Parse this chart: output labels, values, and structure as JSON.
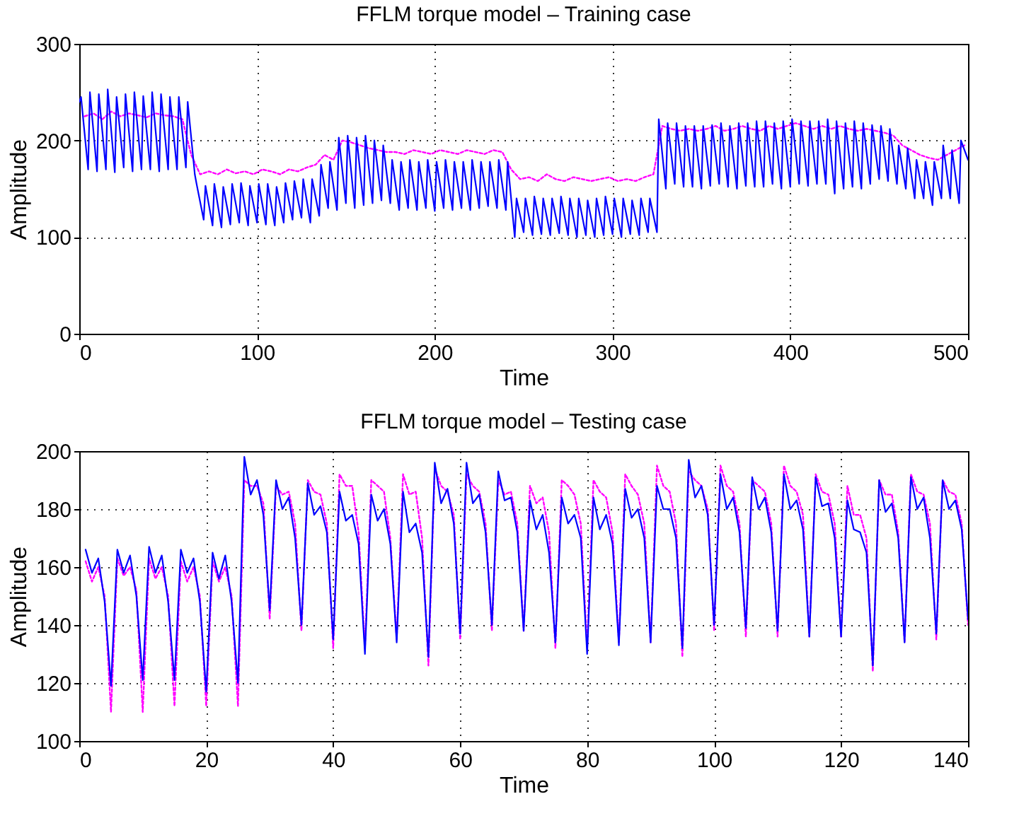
{
  "chart_data": [
    {
      "type": "line",
      "title": "FFLM torque model – Training case",
      "xlabel": "Time",
      "ylabel": "Amplitude",
      "xlim": [
        0,
        500
      ],
      "ylim": [
        0,
        300
      ],
      "xticks": [
        0,
        100,
        200,
        300,
        400,
        500
      ],
      "yticks": [
        0,
        100,
        200,
        300
      ],
      "grid": true,
      "series": [
        {
          "color": "#ff00ff",
          "line_style": "dotted",
          "x": [
            3,
            8,
            13,
            18,
            23,
            28,
            33,
            38,
            43,
            48,
            53,
            58,
            63,
            68,
            73,
            78,
            83,
            88,
            93,
            98,
            103,
            108,
            113,
            118,
            123,
            128,
            133,
            138,
            143,
            148,
            153,
            158,
            163,
            168,
            173,
            178,
            183,
            188,
            193,
            198,
            203,
            208,
            213,
            218,
            223,
            228,
            233,
            238,
            243,
            248,
            253,
            258,
            263,
            268,
            273,
            278,
            283,
            288,
            293,
            298,
            303,
            308,
            313,
            318,
            323,
            328,
            333,
            338,
            343,
            348,
            353,
            358,
            363,
            368,
            373,
            378,
            383,
            388,
            393,
            398,
            403,
            408,
            413,
            418,
            423,
            428,
            433,
            438,
            443,
            448,
            453,
            458,
            463,
            468,
            473,
            478,
            483,
            488,
            493,
            498
          ],
          "values": [
            225,
            228,
            222,
            230,
            225,
            228,
            226,
            224,
            228,
            226,
            225,
            222,
            185,
            165,
            168,
            165,
            170,
            166,
            168,
            165,
            170,
            168,
            165,
            170,
            168,
            172,
            175,
            185,
            180,
            200,
            198,
            195,
            192,
            190,
            188,
            188,
            186,
            190,
            188,
            186,
            190,
            188,
            186,
            190,
            188,
            186,
            190,
            188,
            170,
            160,
            162,
            158,
            165,
            160,
            158,
            162,
            160,
            158,
            160,
            162,
            158,
            160,
            158,
            162,
            165,
            215,
            212,
            210,
            212,
            210,
            212,
            215,
            210,
            212,
            215,
            212,
            210,
            215,
            212,
            215,
            218,
            215,
            212,
            215,
            212,
            215,
            212,
            210,
            212,
            210,
            208,
            205,
            195,
            190,
            185,
            182,
            180,
            185,
            190,
            195
          ]
        },
        {
          "color": "#0000ff",
          "line_style": "solid",
          "x": [
            0,
            1,
            5,
            6,
            10,
            11,
            15,
            16,
            20,
            21,
            25,
            26,
            30,
            31,
            35,
            36,
            40,
            41,
            45,
            46,
            50,
            51,
            55,
            56,
            60,
            61,
            65,
            66,
            70,
            71,
            75,
            76,
            80,
            81,
            85,
            86,
            90,
            91,
            95,
            96,
            100,
            101,
            105,
            106,
            110,
            111,
            115,
            116,
            120,
            121,
            125,
            126,
            130,
            131,
            135,
            136,
            140,
            141,
            145,
            146,
            150,
            151,
            155,
            156,
            160,
            161,
            165,
            166,
            170,
            171,
            175,
            176,
            180,
            181,
            185,
            186,
            190,
            191,
            195,
            196,
            200,
            201,
            205,
            206,
            210,
            211,
            215,
            216,
            220,
            221,
            225,
            226,
            230,
            231,
            235,
            236,
            240,
            241,
            245,
            246,
            250,
            251,
            255,
            256,
            260,
            261,
            265,
            266,
            270,
            271,
            275,
            276,
            280,
            281,
            285,
            286,
            290,
            291,
            295,
            296,
            300,
            301,
            305,
            306,
            310,
            311,
            315,
            316,
            320,
            321,
            325,
            326,
            330,
            331,
            335,
            336,
            340,
            341,
            345,
            346,
            350,
            351,
            355,
            356,
            360,
            361,
            365,
            366,
            370,
            371,
            375,
            376,
            380,
            381,
            385,
            386,
            390,
            391,
            395,
            396,
            400,
            401,
            405,
            406,
            410,
            411,
            415,
            416,
            420,
            421,
            425,
            426,
            430,
            431,
            435,
            436,
            440,
            441,
            445,
            446,
            450,
            451,
            455,
            456,
            460,
            461,
            465,
            466,
            470,
            471,
            475,
            476,
            480,
            481,
            485,
            486,
            490,
            491,
            495,
            496,
            500
          ],
          "values": [
            240,
            245,
            170,
            250,
            168,
            248,
            170,
            253,
            167,
            245,
            172,
            248,
            168,
            250,
            170,
            246,
            170,
            250,
            168,
            248,
            170,
            245,
            170,
            245,
            172,
            240,
            165,
            155,
            118,
            153,
            112,
            155,
            110,
            152,
            113,
            155,
            115,
            156,
            112,
            153,
            115,
            155,
            113,
            155,
            112,
            152,
            115,
            156,
            118,
            158,
            120,
            160,
            115,
            160,
            122,
            175,
            130,
            178,
            128,
            203,
            135,
            205,
            130,
            203,
            133,
            205,
            135,
            200,
            138,
            195,
            135,
            180,
            128,
            178,
            130,
            180,
            128,
            178,
            130,
            180,
            127,
            178,
            130,
            180,
            128,
            178,
            130,
            178,
            128,
            180,
            130,
            178,
            132,
            178,
            130,
            180,
            128,
            178,
            100,
            140,
            105,
            140,
            102,
            142,
            103,
            140,
            102,
            140,
            104,
            142,
            102,
            140,
            100,
            140,
            102,
            138,
            100,
            140,
            102,
            142,
            103,
            140,
            100,
            140,
            103,
            138,
            102,
            140,
            105,
            140,
            105,
            222,
            150,
            218,
            155,
            218,
            152,
            215,
            152,
            215,
            150,
            215,
            153,
            216,
            155,
            218,
            152,
            215,
            150,
            218,
            153,
            218,
            152,
            220,
            152,
            220,
            155,
            218,
            150,
            220,
            152,
            222,
            155,
            220,
            153,
            220,
            155,
            220,
            155,
            222,
            145,
            220,
            150,
            218,
            152,
            220,
            150,
            218,
            155,
            216,
            160,
            215,
            158,
            212,
            155,
            195,
            150,
            192,
            140,
            180,
            140,
            178,
            133,
            178,
            140,
            195,
            140,
            190,
            135,
            200,
            180
          ]
        }
      ]
    },
    {
      "type": "line",
      "title": "FFLM torque model – Testing case",
      "xlabel": "Time",
      "ylabel": "Amplitude",
      "xlim": [
        0,
        140
      ],
      "ylim": [
        100,
        200
      ],
      "xticks": [
        0,
        20,
        40,
        60,
        80,
        100,
        120,
        140
      ],
      "yticks": [
        100,
        120,
        140,
        160,
        180,
        200
      ],
      "grid": true,
      "series": [
        {
          "color": "#ff00ff",
          "line_style": "dotted",
          "x": [
            1,
            2,
            3,
            4,
            5,
            6,
            7,
            8,
            9,
            10,
            11,
            12,
            13,
            14,
            15,
            16,
            17,
            18,
            19,
            20,
            21,
            22,
            23,
            24,
            25,
            26,
            27,
            28,
            29,
            30,
            31,
            32,
            33,
            34,
            35,
            36,
            37,
            38,
            39,
            40,
            41,
            42,
            43,
            44,
            45,
            46,
            47,
            48,
            49,
            50,
            51,
            52,
            53,
            54,
            55,
            56,
            57,
            58,
            59,
            60,
            61,
            62,
            63,
            64,
            65,
            66,
            67,
            68,
            69,
            70,
            71,
            72,
            73,
            74,
            75,
            76,
            77,
            78,
            79,
            80,
            81,
            82,
            83,
            84,
            85,
            86,
            87,
            88,
            89,
            90,
            91,
            92,
            93,
            94,
            95,
            96,
            97,
            98,
            99,
            100,
            101,
            102,
            103,
            104,
            105,
            106,
            107,
            108,
            109,
            110,
            111,
            112,
            113,
            114,
            115,
            116,
            117,
            118,
            119,
            120,
            121,
            122,
            123,
            124,
            125,
            126,
            127,
            128,
            129,
            130,
            131,
            132,
            133,
            134,
            135,
            136,
            137,
            138,
            139,
            140
          ],
          "values": [
            162,
            155,
            160,
            150,
            110,
            163,
            157,
            160,
            152,
            110,
            163,
            156,
            160,
            150,
            112,
            162,
            155,
            160,
            150,
            112,
            162,
            155,
            160,
            150,
            112,
            190,
            188,
            188,
            182,
            142,
            188,
            185,
            186,
            175,
            138,
            190,
            186,
            185,
            175,
            132,
            192,
            188,
            188,
            172,
            132,
            190,
            188,
            186,
            170,
            135,
            192,
            185,
            186,
            170,
            126,
            194,
            188,
            186,
            178,
            135,
            192,
            188,
            186,
            175,
            138,
            190,
            185,
            186,
            175,
            138,
            188,
            182,
            184,
            172,
            132,
            190,
            188,
            185,
            175,
            132,
            190,
            186,
            184,
            172,
            134,
            192,
            188,
            185,
            175,
            134,
            195,
            188,
            186,
            175,
            129,
            193,
            190,
            188,
            180,
            138,
            195,
            188,
            186,
            175,
            136,
            190,
            188,
            186,
            175,
            136,
            195,
            188,
            186,
            178,
            136,
            192,
            186,
            185,
            175,
            136,
            188,
            178,
            178,
            170,
            124,
            190,
            185,
            185,
            172,
            134,
            192,
            186,
            185,
            175,
            135,
            190,
            186,
            185,
            175,
            140
          ]
        },
        {
          "color": "#0000ff",
          "line_style": "solid",
          "x": [
            1,
            2,
            3,
            4,
            5,
            6,
            7,
            8,
            9,
            10,
            11,
            12,
            13,
            14,
            15,
            16,
            17,
            18,
            19,
            20,
            21,
            22,
            23,
            24,
            25,
            26,
            27,
            28,
            29,
            30,
            31,
            32,
            33,
            34,
            35,
            36,
            37,
            38,
            39,
            40,
            41,
            42,
            43,
            44,
            45,
            46,
            47,
            48,
            49,
            50,
            51,
            52,
            53,
            54,
            55,
            56,
            57,
            58,
            59,
            60,
            61,
            62,
            63,
            64,
            65,
            66,
            67,
            68,
            69,
            70,
            71,
            72,
            73,
            74,
            75,
            76,
            77,
            78,
            79,
            80,
            81,
            82,
            83,
            84,
            85,
            86,
            87,
            88,
            89,
            90,
            91,
            92,
            93,
            94,
            95,
            96,
            97,
            98,
            99,
            100,
            101,
            102,
            103,
            104,
            105,
            106,
            107,
            108,
            109,
            110,
            111,
            112,
            113,
            114,
            115,
            116,
            117,
            118,
            119,
            120,
            121,
            122,
            123,
            124,
            125,
            126,
            127,
            128,
            129,
            130,
            131,
            132,
            133,
            134,
            135,
            136,
            137,
            138,
            139,
            140
          ],
          "values": [
            166,
            158,
            163,
            148,
            119,
            166,
            158,
            164,
            150,
            121,
            167,
            158,
            164,
            148,
            121,
            166,
            158,
            163,
            148,
            117,
            165,
            156,
            164,
            148,
            120,
            198,
            185,
            190,
            178,
            145,
            190,
            180,
            184,
            170,
            140,
            189,
            178,
            181,
            172,
            135,
            186,
            176,
            178,
            168,
            130,
            185,
            176,
            180,
            168,
            134,
            186,
            172,
            175,
            165,
            129,
            196,
            182,
            187,
            175,
            137,
            196,
            182,
            185,
            172,
            140,
            193,
            183,
            184,
            172,
            138,
            183,
            173,
            178,
            165,
            134,
            184,
            175,
            178,
            170,
            130,
            184,
            173,
            178,
            168,
            133,
            187,
            177,
            180,
            170,
            134,
            188,
            180,
            180,
            170,
            132,
            197,
            184,
            188,
            178,
            140,
            192,
            180,
            184,
            172,
            139,
            191,
            180,
            184,
            172,
            138,
            192,
            180,
            183,
            173,
            136,
            191,
            181,
            182,
            170,
            136,
            183,
            173,
            172,
            165,
            126,
            190,
            179,
            182,
            170,
            134,
            191,
            180,
            184,
            170,
            137,
            190,
            180,
            183,
            173,
            142
          ]
        }
      ]
    }
  ]
}
